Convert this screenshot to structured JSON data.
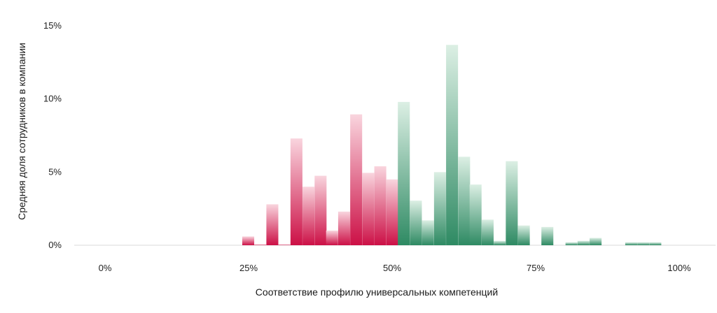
{
  "chart_data": {
    "type": "bar",
    "xlabel": "Соответствие профилю универсальных компетенций",
    "ylabel": "Средняя доля сотрудников в компании",
    "xlim": [
      0,
      100
    ],
    "ylim": [
      0,
      15
    ],
    "x_ticks": [
      {
        "value": 0,
        "label": "0%"
      },
      {
        "value": 25,
        "label": "25%"
      },
      {
        "value": 50,
        "label": "50%"
      },
      {
        "value": 75,
        "label": "75%"
      },
      {
        "value": 100,
        "label": "100%"
      }
    ],
    "y_ticks": [
      {
        "value": 0,
        "label": "0%"
      },
      {
        "value": 5,
        "label": "5%"
      },
      {
        "value": 10,
        "label": "10%"
      },
      {
        "value": 15,
        "label": "15%"
      }
    ],
    "bin_width": 2.08,
    "colors": {
      "below_50_light": "#f9d5de",
      "below_50_dark": "#cc1046",
      "above_50_light": "#dcefe4",
      "above_50_dark": "#2e8a63",
      "baseline": "#d9d9d9"
    },
    "bars": [
      {
        "x": 23.9,
        "value": 0.6
      },
      {
        "x": 26.0,
        "value": 0.05
      },
      {
        "x": 28.1,
        "value": 2.8
      },
      {
        "x": 30.2,
        "value": 0.05
      },
      {
        "x": 32.3,
        "value": 7.3
      },
      {
        "x": 34.4,
        "value": 4.0
      },
      {
        "x": 36.5,
        "value": 4.75
      },
      {
        "x": 38.5,
        "value": 1.0
      },
      {
        "x": 40.6,
        "value": 2.3
      },
      {
        "x": 42.7,
        "value": 8.95
      },
      {
        "x": 44.8,
        "value": 4.95
      },
      {
        "x": 46.9,
        "value": 5.4
      },
      {
        "x": 49.0,
        "value": 4.5
      },
      {
        "x": 51.0,
        "value": 9.8
      },
      {
        "x": 53.1,
        "value": 3.05
      },
      {
        "x": 55.2,
        "value": 1.7
      },
      {
        "x": 57.3,
        "value": 5.0
      },
      {
        "x": 59.4,
        "value": 13.7
      },
      {
        "x": 61.5,
        "value": 6.05
      },
      {
        "x": 63.5,
        "value": 4.15
      },
      {
        "x": 65.6,
        "value": 1.75
      },
      {
        "x": 67.7,
        "value": 0.3
      },
      {
        "x": 69.8,
        "value": 5.75
      },
      {
        "x": 71.9,
        "value": 1.35
      },
      {
        "x": 76.0,
        "value": 1.25
      },
      {
        "x": 80.2,
        "value": 0.2
      },
      {
        "x": 82.3,
        "value": 0.3
      },
      {
        "x": 84.4,
        "value": 0.5
      },
      {
        "x": 90.6,
        "value": 0.2
      },
      {
        "x": 92.7,
        "value": 0.2
      },
      {
        "x": 94.8,
        "value": 0.2
      }
    ]
  }
}
